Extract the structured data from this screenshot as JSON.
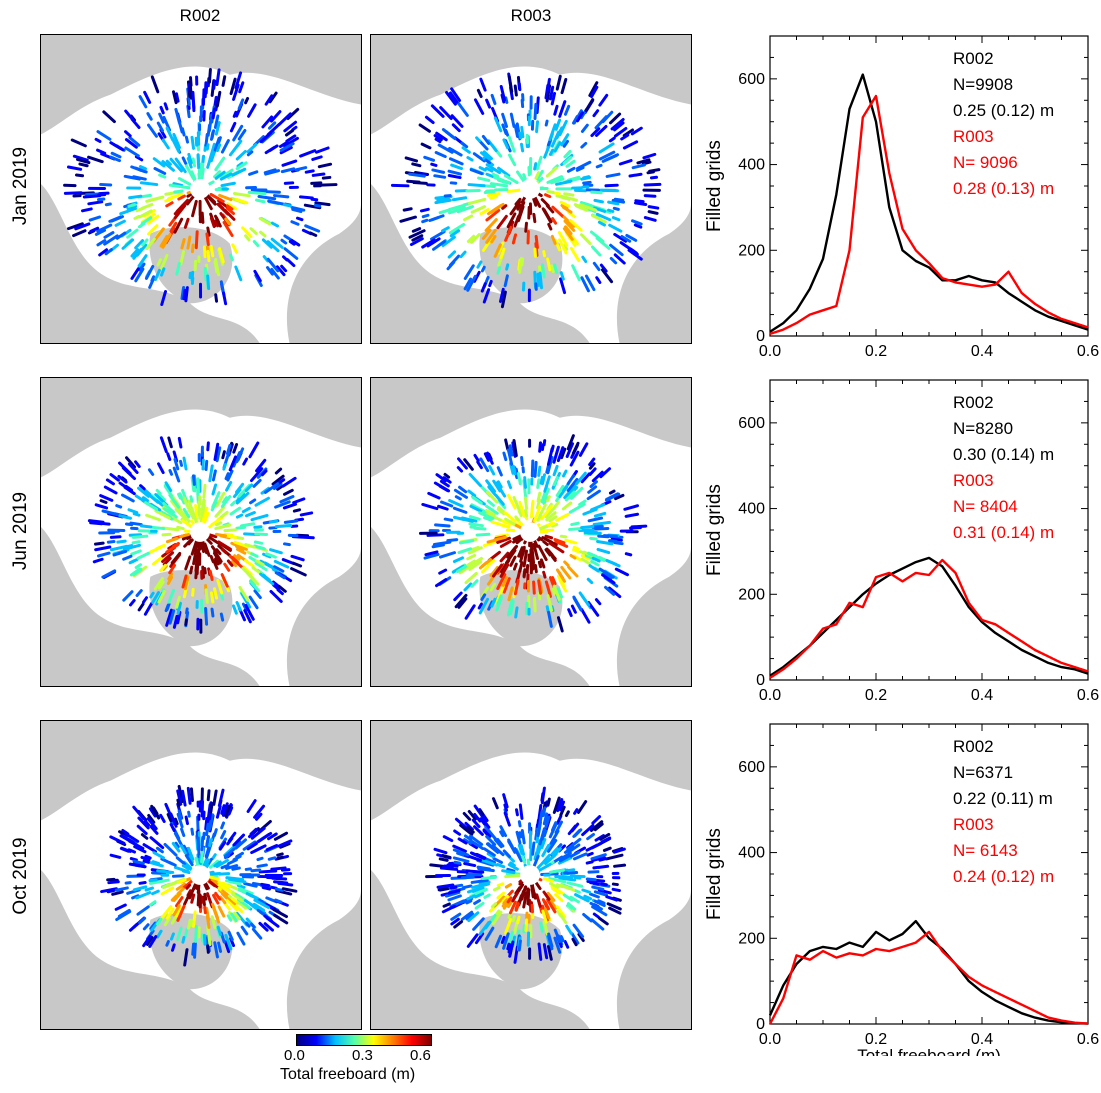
{
  "columns": [
    "R002",
    "R003"
  ],
  "colorbar": {
    "ticks": [
      "0.0",
      "0.3",
      "0.6"
    ],
    "label": "Total freeboard (m)"
  },
  "rows": [
    {
      "label": "Jan 2019",
      "stats": [
        {
          "name": "R002",
          "n": "N=9908",
          "mean": "0.25 (0.12) m",
          "color": "#000000"
        },
        {
          "name": "R003",
          "n": "N= 9096",
          "mean": "0.28 (0.13) m",
          "color": "#ff0000"
        }
      ]
    },
    {
      "label": "Jun 2019",
      "stats": [
        {
          "name": "R002",
          "n": "N=8280",
          "mean": "0.30 (0.14) m",
          "color": "#000000"
        },
        {
          "name": "R003",
          "n": "N= 8404",
          "mean": "0.31 (0.14) m",
          "color": "#ff0000"
        }
      ]
    },
    {
      "label": "Oct 2019",
      "stats": [
        {
          "name": "R002",
          "n": "N=6371",
          "mean": "0.22 (0.11) m",
          "color": "#000000"
        },
        {
          "name": "R003",
          "n": "N= 6143",
          "mean": "0.24 (0.12) m",
          "color": "#ff0000"
        }
      ]
    }
  ],
  "chart_data": [
    {
      "type": "line",
      "title": "",
      "ylabel": "Filled grids",
      "xlabel": "",
      "xlim": [
        0,
        0.6
      ],
      "ylim": [
        0,
        700
      ],
      "xticks": [
        "0.0",
        "0.2",
        "0.4",
        "0.6"
      ],
      "yticks": [
        "0",
        "200",
        "400",
        "600"
      ],
      "series": [
        {
          "name": "R002",
          "color": "#000000",
          "x": [
            0.0,
            0.025,
            0.05,
            0.075,
            0.1,
            0.125,
            0.15,
            0.175,
            0.2,
            0.225,
            0.25,
            0.275,
            0.3,
            0.325,
            0.35,
            0.375,
            0.4,
            0.425,
            0.45,
            0.475,
            0.5,
            0.525,
            0.55,
            0.575,
            0.6
          ],
          "y": [
            10,
            30,
            60,
            110,
            180,
            330,
            530,
            610,
            500,
            300,
            200,
            175,
            160,
            130,
            130,
            140,
            130,
            125,
            100,
            80,
            60,
            45,
            35,
            25,
            15
          ]
        },
        {
          "name": "R003",
          "color": "#ff0000",
          "x": [
            0.0,
            0.025,
            0.05,
            0.075,
            0.1,
            0.125,
            0.15,
            0.175,
            0.2,
            0.225,
            0.25,
            0.275,
            0.3,
            0.325,
            0.35,
            0.375,
            0.4,
            0.425,
            0.45,
            0.475,
            0.5,
            0.525,
            0.55,
            0.575,
            0.6
          ],
          "y": [
            5,
            15,
            30,
            50,
            60,
            70,
            200,
            510,
            560,
            380,
            250,
            200,
            170,
            135,
            125,
            120,
            115,
            120,
            150,
            100,
            75,
            55,
            40,
            30,
            20
          ]
        }
      ]
    },
    {
      "type": "line",
      "title": "",
      "ylabel": "Filled grids",
      "xlabel": "",
      "xlim": [
        0,
        0.6
      ],
      "ylim": [
        0,
        700
      ],
      "xticks": [
        "0.0",
        "0.2",
        "0.4",
        "0.6"
      ],
      "yticks": [
        "0",
        "200",
        "400",
        "600"
      ],
      "series": [
        {
          "name": "R002",
          "color": "#000000",
          "x": [
            0.0,
            0.025,
            0.05,
            0.075,
            0.1,
            0.125,
            0.15,
            0.175,
            0.2,
            0.225,
            0.25,
            0.275,
            0.3,
            0.325,
            0.35,
            0.375,
            0.4,
            0.425,
            0.45,
            0.475,
            0.5,
            0.525,
            0.55,
            0.575,
            0.6
          ],
          "y": [
            10,
            30,
            55,
            80,
            110,
            140,
            170,
            200,
            225,
            245,
            260,
            275,
            285,
            265,
            220,
            170,
            135,
            110,
            90,
            70,
            55,
            40,
            30,
            25,
            15
          ]
        },
        {
          "name": "R003",
          "color": "#ff0000",
          "x": [
            0.0,
            0.025,
            0.05,
            0.075,
            0.1,
            0.125,
            0.15,
            0.175,
            0.2,
            0.225,
            0.25,
            0.275,
            0.3,
            0.325,
            0.35,
            0.375,
            0.4,
            0.425,
            0.45,
            0.475,
            0.5,
            0.525,
            0.55,
            0.575,
            0.6
          ],
          "y": [
            5,
            25,
            50,
            80,
            120,
            130,
            180,
            170,
            240,
            250,
            230,
            250,
            245,
            280,
            250,
            180,
            140,
            130,
            110,
            90,
            70,
            55,
            40,
            30,
            20
          ]
        }
      ]
    },
    {
      "type": "line",
      "title": "",
      "ylabel": "Filled grids",
      "xlabel": "Total freeboard (m)",
      "xlim": [
        0,
        0.6
      ],
      "ylim": [
        0,
        700
      ],
      "xticks": [
        "0.0",
        "0.2",
        "0.4",
        "0.6"
      ],
      "yticks": [
        "0",
        "200",
        "400",
        "600"
      ],
      "series": [
        {
          "name": "R002",
          "color": "#000000",
          "x": [
            0.0,
            0.025,
            0.05,
            0.075,
            0.1,
            0.125,
            0.15,
            0.175,
            0.2,
            0.225,
            0.25,
            0.275,
            0.3,
            0.325,
            0.35,
            0.375,
            0.4,
            0.425,
            0.45,
            0.475,
            0.5,
            0.525,
            0.55,
            0.575,
            0.6
          ],
          "y": [
            20,
            90,
            140,
            170,
            180,
            175,
            190,
            180,
            215,
            195,
            210,
            240,
            200,
            175,
            140,
            100,
            75,
            55,
            40,
            25,
            15,
            8,
            4,
            2,
            1
          ]
        },
        {
          "name": "R003",
          "color": "#ff0000",
          "x": [
            0.0,
            0.025,
            0.05,
            0.075,
            0.1,
            0.125,
            0.15,
            0.175,
            0.2,
            0.225,
            0.25,
            0.275,
            0.3,
            0.325,
            0.35,
            0.375,
            0.4,
            0.425,
            0.45,
            0.475,
            0.5,
            0.525,
            0.55,
            0.575,
            0.6
          ],
          "y": [
            0,
            60,
            160,
            150,
            170,
            155,
            165,
            160,
            175,
            170,
            180,
            190,
            215,
            170,
            140,
            110,
            90,
            75,
            60,
            45,
            30,
            15,
            8,
            3,
            1
          ]
        }
      ]
    }
  ]
}
